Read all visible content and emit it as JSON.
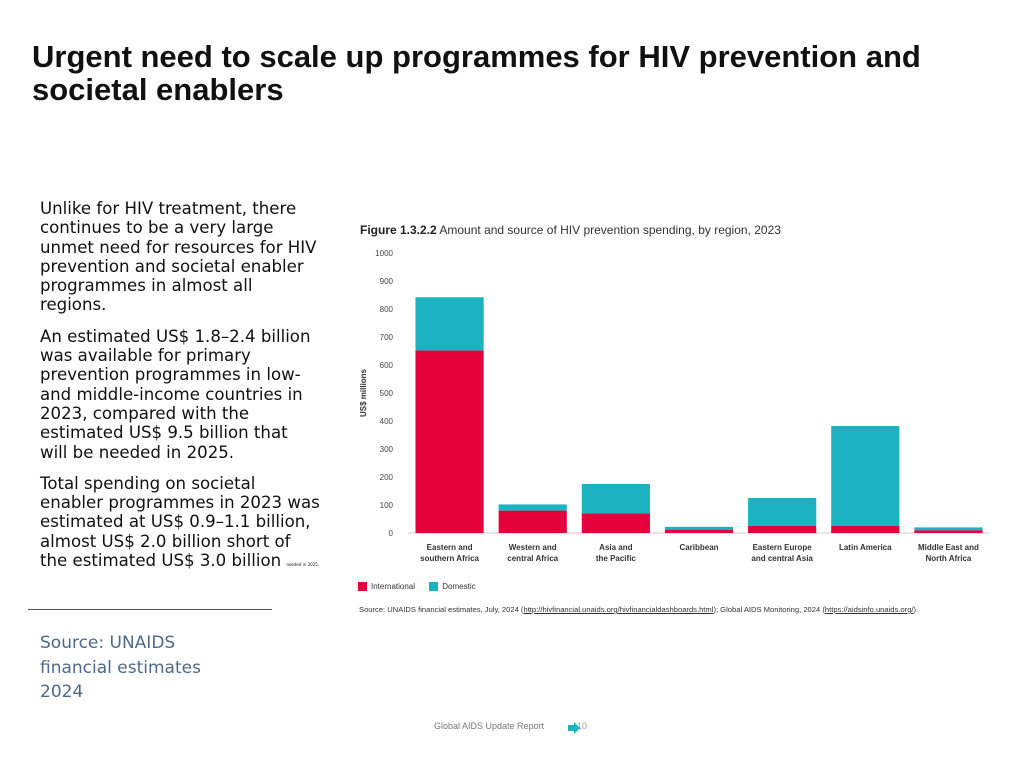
{
  "slide": {
    "title": "Urgent need to scale up programmes for HIV prevention and societal enablers",
    "paragraphs": [
      "Unlike for HIV treatment, there continues to be a very large unmet need for resources for HIV prevention and societal enabler programmes in almost all regions.",
      "An estimated US$ 1.8–2.4 billion was available for primary prevention programmes in low- and middle-income countries in 2023, compared with the estimated US$ 9.5 billion that will be needed in 2025.",
      "Total spending on societal enabler programmes in 2023 was estimated at US$ 0.9–1.1 billion, almost US$ 2.0 billion short of the estimated US$ 3.0 billion"
    ],
    "small_note": "needed in 2025.",
    "source_note": "Source: UNAIDS financial estimates 2024",
    "footer": "Global AIDS Update Report",
    "page_number": "10"
  },
  "figure": {
    "label": "Figure 1.3.2.2",
    "caption": "Amount and source of HIV prevention spending, by region, 2023",
    "source_prefix": "Source: UNAIDS financial estimates, July, 2024 (",
    "source_link1": "http://hivfinancial.unaids.org/hivfinancialdashboards.html",
    "source_mid": "); Global AIDS Monitoring, 2024 (",
    "source_link2": "https://aidsinfo.unaids.org/",
    "source_suffix": ")."
  },
  "colors": {
    "international": "#e4003b",
    "domestic": "#1ab3bf",
    "arrow": "#1ab3bf"
  },
  "icons": {
    "nav": "arrow-right-icon"
  },
  "chart_data": {
    "type": "bar",
    "stacked": true,
    "categories": [
      [
        "Eastern and",
        "southern Africa"
      ],
      [
        "Western and",
        "central Africa"
      ],
      [
        "Asia and",
        "the Pacific"
      ],
      [
        "Caribbean"
      ],
      [
        "Eastern Europe",
        "and central Asia"
      ],
      [
        "Latin America"
      ],
      [
        "Middle East and",
        "North Africa"
      ]
    ],
    "series": [
      {
        "name": "International",
        "values": [
          652,
          80,
          70,
          12,
          25,
          25,
          10
        ]
      },
      {
        "name": "Domestic",
        "values": [
          190,
          22,
          105,
          10,
          100,
          357,
          10
        ]
      }
    ],
    "ylabel": "US$ millions",
    "ylim": [
      0,
      1000
    ],
    "yticks": [
      0,
      100,
      200,
      300,
      400,
      500,
      600,
      700,
      800,
      900,
      1000
    ],
    "legend_position": "bottom-left",
    "grid": false
  }
}
